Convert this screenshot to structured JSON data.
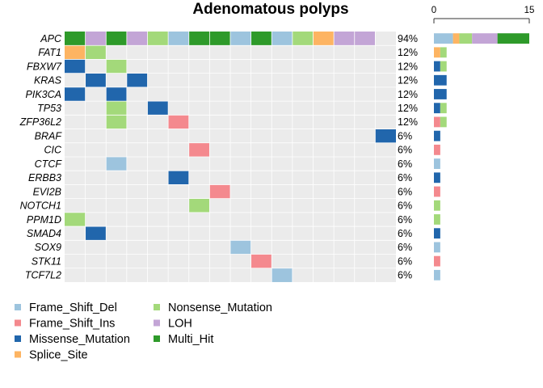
{
  "chart_data": {
    "type": "heatmap",
    "title": "Adenomatous polyps",
    "genes": [
      "APC",
      "FAT1",
      "FBXW7",
      "KRAS",
      "PIK3CA",
      "TP53",
      "ZFP36L2",
      "BRAF",
      "CIC",
      "CTCF",
      "ERBB3",
      "EVI2B",
      "NOTCH1",
      "PPM1D",
      "SMAD4",
      "SOX9",
      "STK11",
      "TCF7L2"
    ],
    "percentages": [
      "94%",
      "12%",
      "12%",
      "12%",
      "12%",
      "12%",
      "12%",
      "6%",
      "6%",
      "6%",
      "6%",
      "6%",
      "6%",
      "6%",
      "6%",
      "6%",
      "6%",
      "6%"
    ],
    "n_samples": 16,
    "matrix": [
      [
        "MH",
        "LOH",
        "MH",
        "LOH",
        "NM",
        "FSD",
        "MH",
        "MH",
        "FSD",
        "MH",
        "FSD",
        "NM",
        "SS",
        "LOH",
        "LOH",
        ""
      ],
      [
        "SS",
        "NM",
        "",
        "",
        "",
        "",
        "",
        "",
        "",
        "",
        "",
        "",
        "",
        "",
        "",
        ""
      ],
      [
        "MM",
        "",
        "NM",
        "",
        "",
        "",
        "",
        "",
        "",
        "",
        "",
        "",
        "",
        "",
        "",
        ""
      ],
      [
        "",
        "MM",
        "",
        "MM",
        "",
        "",
        "",
        "",
        "",
        "",
        "",
        "",
        "",
        "",
        "",
        ""
      ],
      [
        "MM",
        "",
        "MM",
        "",
        "",
        "",
        "",
        "",
        "",
        "",
        "",
        "",
        "",
        "",
        "",
        ""
      ],
      [
        "",
        "",
        "NM",
        "",
        "MM",
        "",
        "",
        "",
        "",
        "",
        "",
        "",
        "",
        "",
        "",
        ""
      ],
      [
        "",
        "",
        "NM",
        "",
        "",
        "FSI",
        "",
        "",
        "",
        "",
        "",
        "",
        "",
        "",
        "",
        ""
      ],
      [
        "",
        "",
        "",
        "",
        "",
        "",
        "",
        "",
        "",
        "",
        "",
        "",
        "",
        "",
        "",
        "MM"
      ],
      [
        "",
        "",
        "",
        "",
        "",
        "",
        "FSI",
        "",
        "",
        "",
        "",
        "",
        "",
        "",
        "",
        ""
      ],
      [
        "",
        "",
        "FSD",
        "",
        "",
        "",
        "",
        "",
        "",
        "",
        "",
        "",
        "",
        "",
        "",
        ""
      ],
      [
        "",
        "",
        "",
        "",
        "",
        "MM",
        "",
        "",
        "",
        "",
        "",
        "",
        "",
        "",
        "",
        ""
      ],
      [
        "",
        "",
        "",
        "",
        "",
        "",
        "",
        "FSI",
        "",
        "",
        "",
        "",
        "",
        "",
        "",
        ""
      ],
      [
        "",
        "",
        "",
        "",
        "",
        "",
        "NM",
        "",
        "",
        "",
        "",
        "",
        "",
        "",
        "",
        ""
      ],
      [
        "NM",
        "",
        "",
        "",
        "",
        "",
        "",
        "",
        "",
        "",
        "",
        "",
        "",
        "",
        "",
        ""
      ],
      [
        "",
        "MM",
        "",
        "",
        "",
        "",
        "",
        "",
        "",
        "",
        "",
        "",
        "",
        "",
        "",
        ""
      ],
      [
        "",
        "",
        "",
        "",
        "",
        "",
        "",
        "",
        "FSD",
        "",
        "",
        "",
        "",
        "",
        "",
        ""
      ],
      [
        "",
        "",
        "",
        "",
        "",
        "",
        "",
        "",
        "",
        "FSI",
        "",
        "",
        "",
        "",
        "",
        ""
      ],
      [
        "",
        "",
        "",
        "",
        "",
        "",
        "",
        "",
        "",
        "",
        "FSD",
        "",
        "",
        "",
        "",
        ""
      ]
    ],
    "bar_axis": {
      "min": 0,
      "max": 15,
      "ticks": [
        "0",
        "15"
      ]
    },
    "legend": [
      {
        "code": "FSD",
        "label": "Frame_Shift_Del",
        "color": "#9DC4DE"
      },
      {
        "code": "FSI",
        "label": "Frame_Shift_Ins",
        "color": "#F4898E"
      },
      {
        "code": "MM",
        "label": "Missense_Mutation",
        "color": "#2166AC"
      },
      {
        "code": "SS",
        "label": "Splice_Site",
        "color": "#FDB462"
      },
      {
        "code": "NM",
        "label": "Nonsense_Mutation",
        "color": "#A3D97A"
      },
      {
        "code": "LOH",
        "label": "LOH",
        "color": "#C3A5D6"
      },
      {
        "code": "MH",
        "label": "Multi_Hit",
        "color": "#2E9A2A"
      }
    ],
    "legend_placement": "bottom-left",
    "background_color": "#EBEBEB"
  }
}
